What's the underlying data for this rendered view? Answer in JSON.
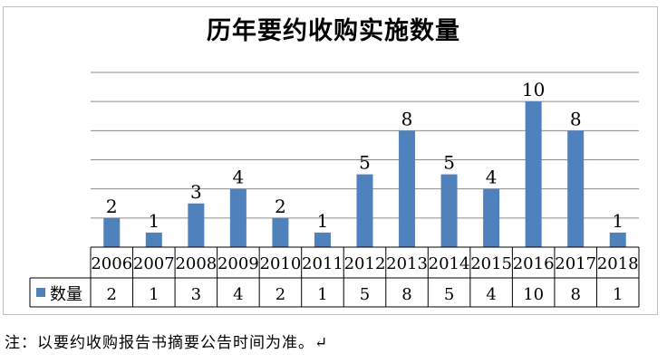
{
  "chart_data": {
    "type": "bar",
    "title": "历年要约收购实施数量",
    "categories": [
      "2006",
      "2007",
      "2008",
      "2009",
      "2010",
      "2011",
      "2012",
      "2013",
      "2014",
      "2015",
      "2016",
      "2017",
      "2018"
    ],
    "series": [
      {
        "name": "数量",
        "values": [
          2,
          1,
          3,
          4,
          2,
          1,
          5,
          8,
          5,
          4,
          10,
          8,
          1
        ],
        "color": "#4f81bd"
      }
    ],
    "ylim": [
      0,
      12
    ],
    "y_step": 2,
    "grid": true,
    "data_labels": true,
    "data_table": true,
    "legend": "data-table-left"
  },
  "note": "注：以要约收购报告书摘要公告时间为准。↵"
}
